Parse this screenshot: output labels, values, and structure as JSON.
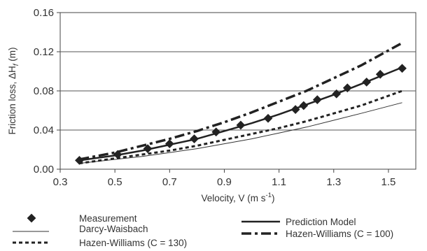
{
  "chart_data": {
    "type": "line",
    "title": "",
    "xlabel": "Velocity, V (m s",
    "xlabel_sup": "-1",
    "xlabel_end": ")",
    "ylabel": "Friction loss, ΔH",
    "ylabel_sub": "f",
    "ylabel_end": " (m)",
    "xlim": [
      0.3,
      1.6
    ],
    "ylim": [
      0,
      0.16
    ],
    "x_ticks": [
      "0.3",
      "0.5",
      "0.7",
      "0.9",
      "1.1",
      "1.3",
      "1.5"
    ],
    "y_ticks": [
      "0.00",
      "0.04",
      "0.08",
      "0.12",
      "0.16"
    ],
    "grid": "horizontal",
    "legend_position": "bottom",
    "series": [
      {
        "name": "Measurement",
        "style": "markers",
        "color": "#222222",
        "x": [
          0.37,
          0.51,
          0.62,
          0.7,
          0.79,
          0.87,
          0.96,
          1.06,
          1.16,
          1.19,
          1.24,
          1.31,
          1.35,
          1.42,
          1.47,
          1.55
        ],
        "y": [
          0.009,
          0.015,
          0.021,
          0.026,
          0.031,
          0.038,
          0.045,
          0.052,
          0.061,
          0.065,
          0.071,
          0.077,
          0.083,
          0.089,
          0.097,
          0.103
        ]
      },
      {
        "name": "Prediction Model",
        "style": "solid-thick",
        "color": "#222222",
        "x": [
          0.37,
          0.5,
          0.6,
          0.7,
          0.8,
          0.9,
          1.0,
          1.1,
          1.2,
          1.3,
          1.4,
          1.55
        ],
        "y": [
          0.009,
          0.014,
          0.019,
          0.025,
          0.031,
          0.039,
          0.047,
          0.056,
          0.066,
          0.076,
          0.087,
          0.104
        ]
      },
      {
        "name": "Darcy-Waisbach",
        "style": "solid-thin",
        "color": "#333333",
        "x": [
          0.37,
          0.5,
          0.6,
          0.7,
          0.8,
          0.9,
          1.0,
          1.1,
          1.2,
          1.3,
          1.4,
          1.55
        ],
        "y": [
          0.006,
          0.01,
          0.013,
          0.017,
          0.021,
          0.026,
          0.031,
          0.037,
          0.043,
          0.05,
          0.057,
          0.068
        ]
      },
      {
        "name": "Hazen-Williams (C = 100)",
        "style": "dash-dot",
        "color": "#222222",
        "x": [
          0.37,
          0.5,
          0.6,
          0.7,
          0.8,
          0.9,
          1.0,
          1.1,
          1.2,
          1.3,
          1.4,
          1.55
        ],
        "y": [
          0.01,
          0.017,
          0.024,
          0.031,
          0.039,
          0.048,
          0.058,
          0.069,
          0.08,
          0.093,
          0.106,
          0.129
        ]
      },
      {
        "name": "Hazen-Williams (C = 130)",
        "style": "dotted",
        "color": "#222222",
        "x": [
          0.37,
          0.5,
          0.6,
          0.7,
          0.8,
          0.9,
          1.0,
          1.1,
          1.2,
          1.3,
          1.4,
          1.55
        ],
        "y": [
          0.006,
          0.011,
          0.015,
          0.019,
          0.024,
          0.03,
          0.036,
          0.042,
          0.049,
          0.057,
          0.065,
          0.08
        ]
      }
    ]
  }
}
